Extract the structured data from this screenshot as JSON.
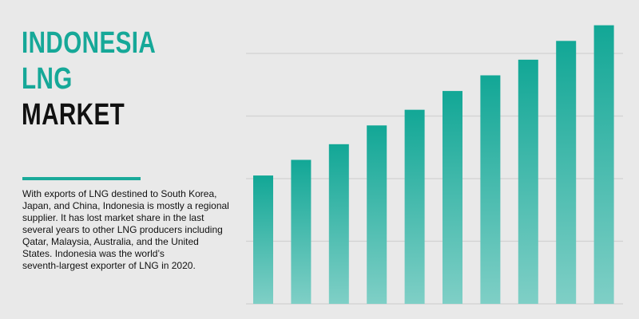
{
  "chart_data": {
    "type": "bar",
    "title_lines": [
      "INDONESIA",
      "LNG",
      "MARKET"
    ],
    "description_lines": [
      "With exports of LNG destined to South Korea,",
      "Japan, and China, Indonesia is mostly a regional",
      "supplier. It has lost market share in the last",
      "several years to other LNG producers including",
      "Qatar, Malaysia, Australia, and the United",
      "States. Indonesia was the world’s",
      "seventh-largest exporter of LNG in 2020."
    ],
    "categories": [
      null,
      null,
      null,
      null,
      null,
      null,
      null,
      null,
      null,
      null
    ],
    "values": [
      41,
      46,
      51,
      57,
      62,
      68,
      73,
      78,
      84,
      89
    ],
    "color": "#12a796",
    "ylim": [
      0,
      100
    ],
    "yticks": [
      0,
      20,
      40,
      60,
      80
    ],
    "grid": true
  }
}
